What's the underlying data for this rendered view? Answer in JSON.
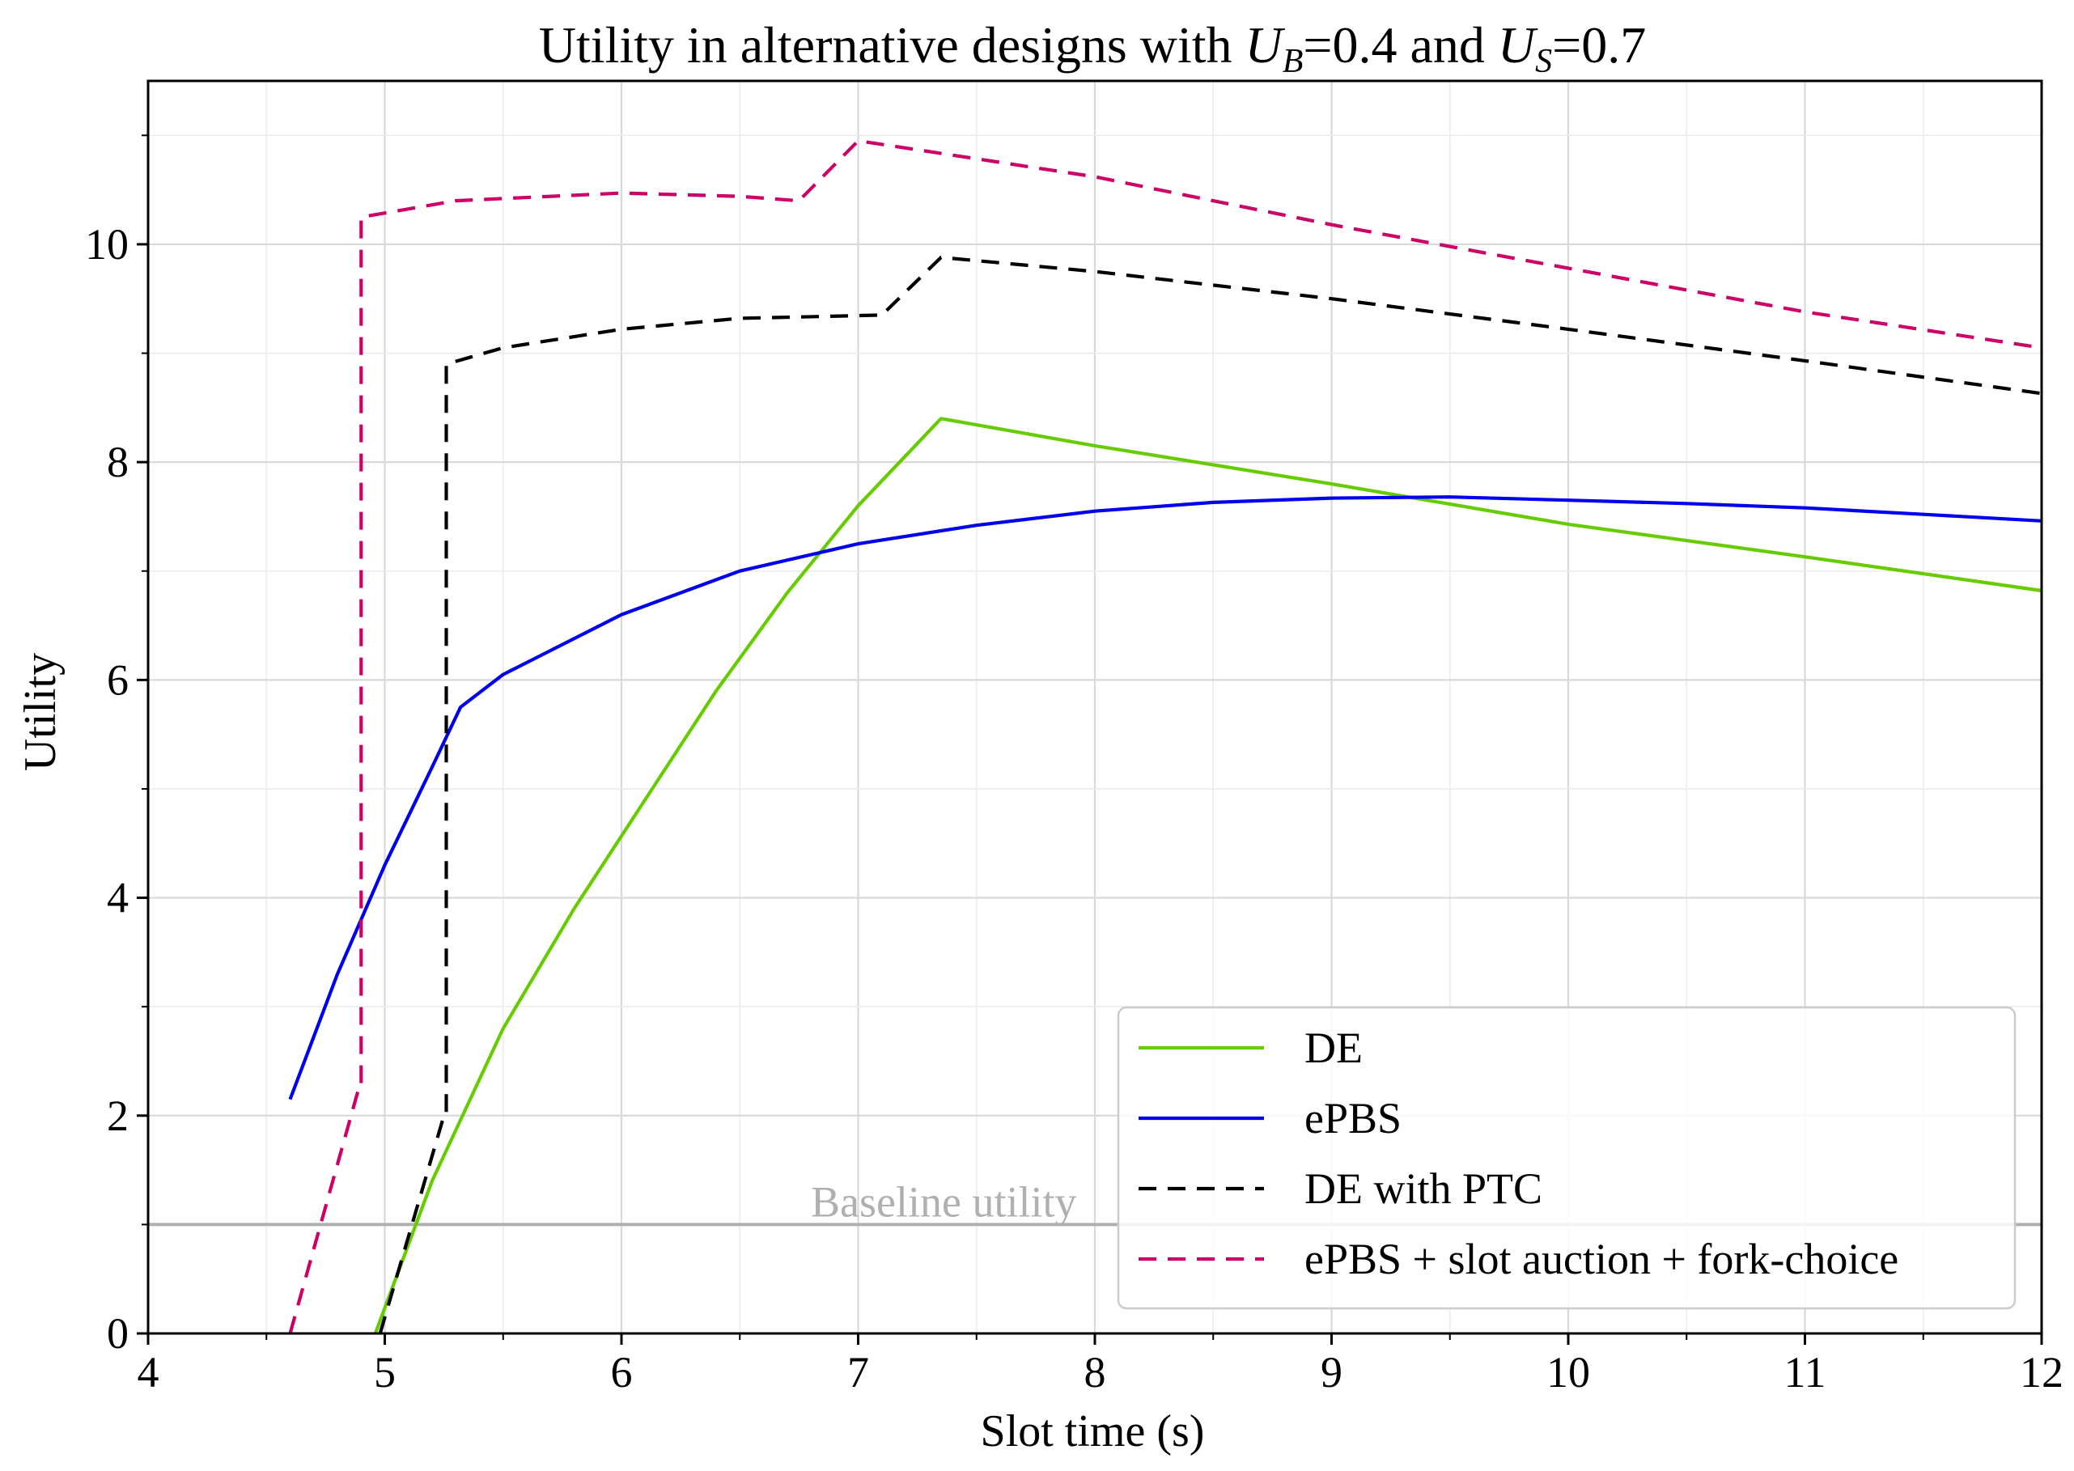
{
  "chart_data": {
    "type": "line",
    "title": {
      "prefix": "Utility in alternative designs with ",
      "ub_symbol": "U",
      "ub_sub": "B",
      "ub_value": "=0.4",
      "joiner": " and ",
      "us_symbol": "U",
      "us_sub": "S",
      "us_value": "=0.7"
    },
    "xlabel": "Slot time (s)",
    "ylabel": "Utility",
    "xlim": [
      4,
      12
    ],
    "ylim": [
      0,
      11.5
    ],
    "xticks": [
      4,
      5,
      6,
      7,
      8,
      9,
      10,
      11,
      12
    ],
    "yticks": [
      0,
      2,
      4,
      6,
      8,
      10
    ],
    "grid": true,
    "legend_position": "lower right",
    "baseline": {
      "value": 1.0,
      "label": "Baseline utility",
      "color": "#b0b0b0"
    },
    "series": [
      {
        "name": "DE",
        "color": "#66cc00",
        "style": "solid",
        "x": [
          4.96,
          5.2,
          5.5,
          5.8,
          6.1,
          6.4,
          6.7,
          7.0,
          7.35,
          8.0,
          9.0,
          10.0,
          11.0,
          12.0
        ],
        "y": [
          0.0,
          1.4,
          2.8,
          3.9,
          4.9,
          5.9,
          6.8,
          7.6,
          8.4,
          8.15,
          7.8,
          7.43,
          7.13,
          6.82
        ]
      },
      {
        "name": "ePBS",
        "color": "#0000ee",
        "style": "solid",
        "x": [
          4.6,
          4.8,
          5.0,
          5.2,
          5.32,
          5.5,
          6.0,
          6.5,
          7.0,
          7.5,
          8.0,
          8.5,
          9.0,
          9.5,
          10.0,
          10.5,
          11.0,
          11.5,
          12.0
        ],
        "y": [
          2.15,
          3.3,
          4.3,
          5.2,
          5.75,
          6.05,
          6.6,
          7.0,
          7.25,
          7.42,
          7.55,
          7.63,
          7.67,
          7.68,
          7.65,
          7.62,
          7.58,
          7.52,
          7.46
        ],
        "highlight_points": []
      },
      {
        "name": "DE with PTC",
        "color": "#000000",
        "style": "dashed",
        "x": [
          4.98,
          5.25,
          5.26,
          5.26,
          5.5,
          6.0,
          6.5,
          7.1,
          7.35,
          8.0,
          9.0,
          10.0,
          11.0,
          12.0
        ],
        "y": [
          0.0,
          2.0,
          2.0,
          8.9,
          9.05,
          9.22,
          9.32,
          9.35,
          9.88,
          9.75,
          9.5,
          9.22,
          8.93,
          8.63
        ]
      },
      {
        "name": "ePBS + slot auction + fork-choice",
        "color": "#cc0066",
        "style": "dashed",
        "x": [
          4.6,
          4.89,
          4.9,
          4.9,
          5.3,
          6.0,
          6.5,
          6.75,
          7.0,
          8.0,
          9.0,
          10.0,
          11.0,
          12.0
        ],
        "y": [
          0.0,
          2.25,
          2.25,
          10.25,
          10.4,
          10.47,
          10.44,
          10.4,
          10.95,
          10.62,
          10.18,
          9.78,
          9.38,
          9.05
        ]
      }
    ]
  }
}
